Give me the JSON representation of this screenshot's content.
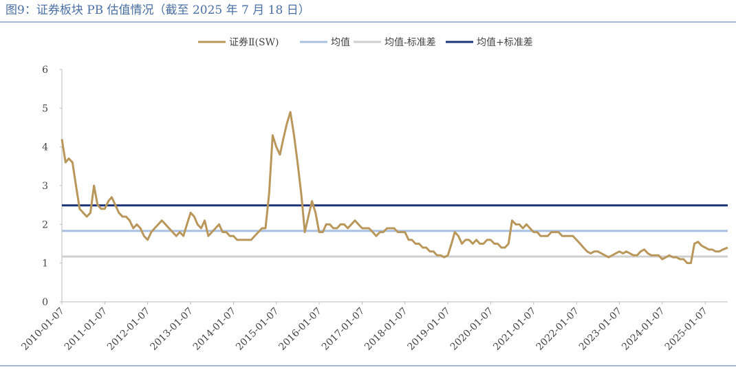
{
  "chart_data": {
    "type": "line",
    "title": "图9：证券板块 PB 估值情况（截至 2025 年 7 月 18 日）",
    "x": [
      "2010-01-07",
      "2010-02-07",
      "2010-03-07",
      "2010-04-07",
      "2010-05-07",
      "2010-06-07",
      "2010-07-07",
      "2010-08-07",
      "2010-09-07",
      "2010-10-07",
      "2010-11-07",
      "2010-12-07",
      "2011-01-07",
      "2011-02-07",
      "2011-03-07",
      "2011-04-07",
      "2011-05-07",
      "2011-06-07",
      "2011-07-07",
      "2011-08-07",
      "2011-09-07",
      "2011-10-07",
      "2011-11-07",
      "2011-12-07",
      "2012-01-07",
      "2012-02-07",
      "2012-03-07",
      "2012-04-07",
      "2012-05-07",
      "2012-06-07",
      "2012-07-07",
      "2012-08-07",
      "2012-09-07",
      "2012-10-07",
      "2012-11-07",
      "2012-12-07",
      "2013-01-07",
      "2013-02-07",
      "2013-03-07",
      "2013-04-07",
      "2013-05-07",
      "2013-06-07",
      "2013-07-07",
      "2013-08-07",
      "2013-09-07",
      "2013-10-07",
      "2013-11-07",
      "2013-12-07",
      "2014-01-07",
      "2014-02-07",
      "2014-03-07",
      "2014-04-07",
      "2014-05-07",
      "2014-06-07",
      "2014-07-07",
      "2014-08-07",
      "2014-09-07",
      "2014-10-07",
      "2014-11-07",
      "2014-12-07",
      "2015-01-07",
      "2015-02-07",
      "2015-03-07",
      "2015-04-07",
      "2015-05-07",
      "2015-06-07",
      "2015-07-07",
      "2015-08-07",
      "2015-09-07",
      "2015-10-07",
      "2015-11-07",
      "2015-12-07",
      "2016-01-07",
      "2016-02-07",
      "2016-03-07",
      "2016-04-07",
      "2016-05-07",
      "2016-06-07",
      "2016-07-07",
      "2016-08-07",
      "2016-09-07",
      "2016-10-07",
      "2016-11-07",
      "2016-12-07",
      "2017-01-07",
      "2017-02-07",
      "2017-03-07",
      "2017-04-07",
      "2017-05-07",
      "2017-06-07",
      "2017-07-07",
      "2017-08-07",
      "2017-09-07",
      "2017-10-07",
      "2017-11-07",
      "2017-12-07",
      "2018-01-07",
      "2018-02-07",
      "2018-03-07",
      "2018-04-07",
      "2018-05-07",
      "2018-06-07",
      "2018-07-07",
      "2018-08-07",
      "2018-09-07",
      "2018-10-07",
      "2018-11-07",
      "2018-12-07",
      "2019-01-07",
      "2019-02-07",
      "2019-03-07",
      "2019-04-07",
      "2019-05-07",
      "2019-06-07",
      "2019-07-07",
      "2019-08-07",
      "2019-09-07",
      "2019-10-07",
      "2019-11-07",
      "2019-12-07",
      "2020-01-07",
      "2020-02-07",
      "2020-03-07",
      "2020-04-07",
      "2020-05-07",
      "2020-06-07",
      "2020-07-07",
      "2020-08-07",
      "2020-09-07",
      "2020-10-07",
      "2020-11-07",
      "2020-12-07",
      "2021-01-07",
      "2021-02-07",
      "2021-03-07",
      "2021-04-07",
      "2021-05-07",
      "2021-06-07",
      "2021-07-07",
      "2021-08-07",
      "2021-09-07",
      "2021-10-07",
      "2021-11-07",
      "2021-12-07",
      "2022-01-07",
      "2022-02-07",
      "2022-03-07",
      "2022-04-07",
      "2022-05-07",
      "2022-06-07",
      "2022-07-07",
      "2022-08-07",
      "2022-09-07",
      "2022-10-07",
      "2022-11-07",
      "2022-12-07",
      "2023-01-07",
      "2023-02-07",
      "2023-03-07",
      "2023-04-07",
      "2023-05-07",
      "2023-06-07",
      "2023-07-07",
      "2023-08-07",
      "2023-09-07",
      "2023-10-07",
      "2023-11-07",
      "2023-12-07",
      "2024-01-07",
      "2024-02-07",
      "2024-03-07",
      "2024-04-07",
      "2024-05-07",
      "2024-06-07",
      "2024-07-07",
      "2024-08-07",
      "2024-09-07",
      "2024-10-07",
      "2024-11-07",
      "2024-12-07",
      "2025-01-07",
      "2025-02-07",
      "2025-03-07",
      "2025-04-07",
      "2025-05-07",
      "2025-06-07",
      "2025-07-18"
    ],
    "series": [
      {
        "name": "证券Ⅱ(SW)",
        "color": "#b9975b",
        "values": [
          4.2,
          3.6,
          3.7,
          3.6,
          3.0,
          2.4,
          2.3,
          2.2,
          2.3,
          3.0,
          2.5,
          2.4,
          2.4,
          2.6,
          2.7,
          2.5,
          2.3,
          2.2,
          2.2,
          2.1,
          1.9,
          2.0,
          1.9,
          1.7,
          1.6,
          1.8,
          1.9,
          2.0,
          2.1,
          2.0,
          1.9,
          1.8,
          1.7,
          1.8,
          1.7,
          2.0,
          2.3,
          2.2,
          2.0,
          1.9,
          2.1,
          1.7,
          1.8,
          1.9,
          2.0,
          1.8,
          1.8,
          1.7,
          1.7,
          1.6,
          1.6,
          1.6,
          1.6,
          1.6,
          1.7,
          1.8,
          1.9,
          1.9,
          2.8,
          4.3,
          4.0,
          3.8,
          4.2,
          4.6,
          4.9,
          4.3,
          3.6,
          2.8,
          1.8,
          2.2,
          2.6,
          2.3,
          1.8,
          1.8,
          2.0,
          2.0,
          1.9,
          1.9,
          2.0,
          2.0,
          1.9,
          2.0,
          2.1,
          2.0,
          1.9,
          1.9,
          1.9,
          1.8,
          1.7,
          1.8,
          1.8,
          1.9,
          1.9,
          1.9,
          1.8,
          1.8,
          1.8,
          1.6,
          1.6,
          1.5,
          1.5,
          1.4,
          1.4,
          1.3,
          1.3,
          1.2,
          1.2,
          1.15,
          1.2,
          1.5,
          1.8,
          1.7,
          1.5,
          1.6,
          1.6,
          1.5,
          1.6,
          1.5,
          1.5,
          1.6,
          1.6,
          1.5,
          1.5,
          1.4,
          1.4,
          1.5,
          2.1,
          2.0,
          2.0,
          1.9,
          2.0,
          1.9,
          1.8,
          1.8,
          1.7,
          1.7,
          1.7,
          1.8,
          1.8,
          1.8,
          1.7,
          1.7,
          1.7,
          1.7,
          1.6,
          1.5,
          1.4,
          1.3,
          1.25,
          1.3,
          1.3,
          1.25,
          1.2,
          1.15,
          1.2,
          1.25,
          1.3,
          1.25,
          1.3,
          1.25,
          1.2,
          1.2,
          1.3,
          1.35,
          1.25,
          1.2,
          1.2,
          1.2,
          1.1,
          1.15,
          1.2,
          1.15,
          1.15,
          1.1,
          1.1,
          1.0,
          1.0,
          1.5,
          1.55,
          1.45,
          1.4,
          1.35,
          1.35,
          1.3,
          1.3,
          1.35,
          1.4
        ]
      }
    ],
    "reference_lines": [
      {
        "name": "均值",
        "color": "#a9bfe0",
        "value": 1.83
      },
      {
        "name": "均值-标准差",
        "color": "#cfcfcf",
        "value": 1.17
      },
      {
        "name": "均值+标准差",
        "color": "#1b3478",
        "value": 2.49
      }
    ],
    "xlim": [
      "2010-01-07",
      "2025-07-18"
    ],
    "xticks": [
      "2010-01-07",
      "2011-01-07",
      "2012-01-07",
      "2013-01-07",
      "2014-01-07",
      "2015-01-07",
      "2016-01-07",
      "2017-01-07",
      "2018-01-07",
      "2019-01-07",
      "2020-01-07",
      "2021-01-07",
      "2022-01-07",
      "2023-01-07",
      "2024-01-07",
      "2025-01-07"
    ],
    "ylim": [
      0,
      6
    ],
    "yticks": [
      0,
      1,
      2,
      3,
      4,
      5,
      6
    ]
  }
}
